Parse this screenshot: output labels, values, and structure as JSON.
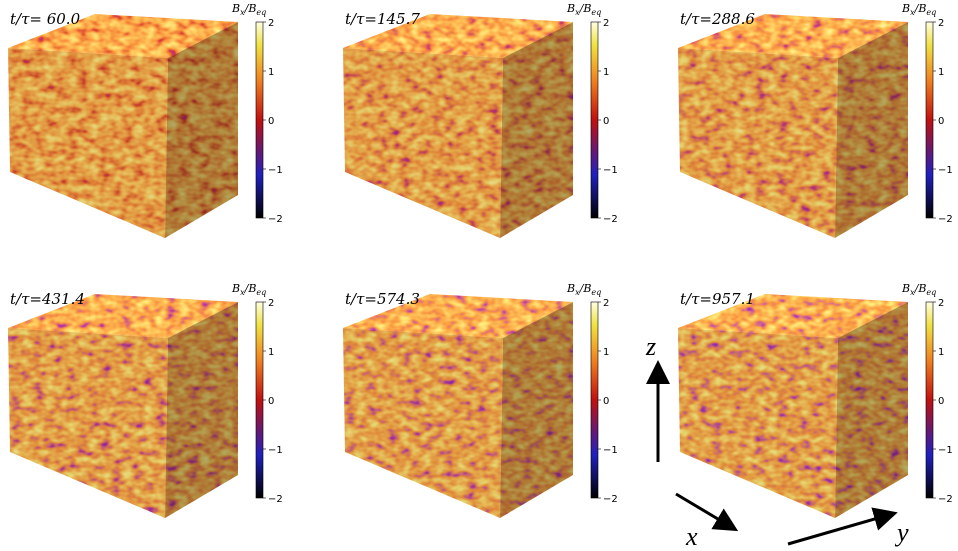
{
  "panels": [
    {
      "time_label": "t/τ= 60.0"
    },
    {
      "time_label": "t/τ=145.7"
    },
    {
      "time_label": "t/τ=288.6"
    },
    {
      "time_label": "t/τ=431.4"
    },
    {
      "time_label": "t/τ=574.3"
    },
    {
      "time_label": "t/τ=957.1"
    }
  ],
  "colorbar": {
    "label_parts": [
      "B",
      "x",
      "/B",
      "eq"
    ],
    "ticks": [
      "2",
      "1",
      "0",
      "−1",
      "−2"
    ]
  },
  "axes": {
    "z": "z",
    "x": "x",
    "y": "y"
  }
}
